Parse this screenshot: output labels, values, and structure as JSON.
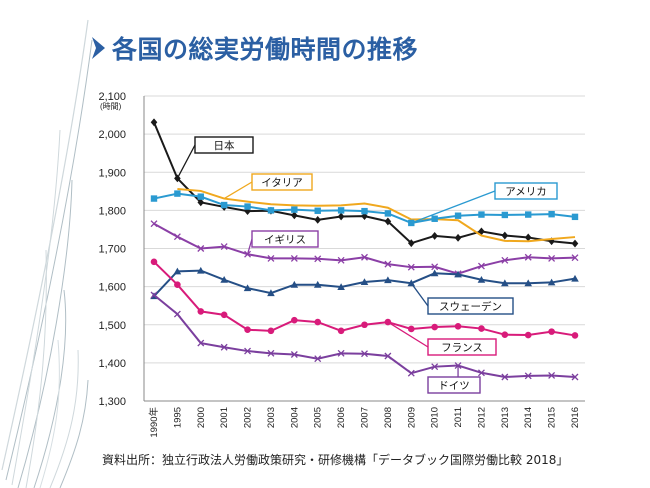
{
  "slide": {
    "title": "各国の総実労働時間の推移",
    "source": "資料出所：独立行政法人労働政策研究・研修機構「データブック国際労働比較 2018」"
  },
  "chart_data": {
    "type": "line",
    "y_unit_label": "(時間)",
    "x": [
      "1990年",
      "1995",
      "2000",
      "2001",
      "2002",
      "2003",
      "2004",
      "2005",
      "2006",
      "2007",
      "2008",
      "2009",
      "2010",
      "2011",
      "2012",
      "2013",
      "2014",
      "2015",
      "2016"
    ],
    "ylim": [
      1300,
      2100
    ],
    "yticks": [
      1300,
      1400,
      1500,
      1600,
      1700,
      1800,
      1900,
      2000,
      2100
    ],
    "ytick_labels": [
      "1,300",
      "1,400",
      "1,500",
      "1,600",
      "1,700",
      "1,800",
      "1,900",
      "2,000",
      "2,100"
    ],
    "grid": true,
    "series": [
      {
        "name": "日本",
        "color": "#1a1a1a",
        "marker": "diamond",
        "values": [
          2031,
          1884,
          1821,
          1809,
          1798,
          1799,
          1787,
          1775,
          1784,
          1785,
          1771,
          1714,
          1733,
          1728,
          1745,
          1734,
          1729,
          1719,
          1713
        ]
      },
      {
        "name": "イタリア",
        "color": "#f0a81e",
        "marker": "none",
        "values": [
          null,
          1856,
          1851,
          1831,
          1823,
          1816,
          1813,
          1812,
          1813,
          1818,
          1807,
          1776,
          1777,
          1774,
          1734,
          1720,
          1719,
          1725,
          1730
        ]
      },
      {
        "name": "アメリカ",
        "color": "#2a9ad1",
        "marker": "square",
        "values": [
          1831,
          1844,
          1836,
          1814,
          1810,
          1800,
          1802,
          1799,
          1800,
          1798,
          1792,
          1767,
          1778,
          1786,
          1789,
          1788,
          1789,
          1790,
          1783
        ]
      },
      {
        "name": "イギリス",
        "color": "#8b3fa6",
        "marker": "x",
        "values": [
          1765,
          1731,
          1700,
          1705,
          1685,
          1674,
          1674,
          1673,
          1669,
          1677,
          1659,
          1651,
          1652,
          1634,
          1654,
          1669,
          1677,
          1674,
          1676
        ]
      },
      {
        "name": "スウェーデン",
        "color": "#254f86",
        "marker": "triangle",
        "values": [
          1575,
          1640,
          1642,
          1618,
          1596,
          1583,
          1605,
          1605,
          1599,
          1612,
          1617,
          1609,
          1635,
          1632,
          1618,
          1609,
          1609,
          1611,
          1621
        ]
      },
      {
        "name": "フランス",
        "color": "#d81b7a",
        "marker": "circle",
        "values": [
          1665,
          1605,
          1535,
          1526,
          1487,
          1484,
          1512,
          1507,
          1484,
          1500,
          1507,
          1489,
          1494,
          1496,
          1490,
          1474,
          1473,
          1482,
          1472
        ]
      },
      {
        "name": "ドイツ",
        "color": "#7b3f9e",
        "marker": "x",
        "values": [
          1578,
          1528,
          1452,
          1441,
          1431,
          1425,
          1422,
          1411,
          1425,
          1424,
          1418,
          1373,
          1390,
          1393,
          1374,
          1363,
          1366,
          1367,
          1363
        ]
      }
    ],
    "labels": [
      {
        "series": 0,
        "text": "日本"
      },
      {
        "series": 1,
        "text": "イタリア"
      },
      {
        "series": 2,
        "text": "アメリカ"
      },
      {
        "series": 3,
        "text": "イギリス"
      },
      {
        "series": 4,
        "text": "スウェーデン"
      },
      {
        "series": 5,
        "text": "フランス"
      },
      {
        "series": 6,
        "text": "ドイツ"
      }
    ]
  }
}
